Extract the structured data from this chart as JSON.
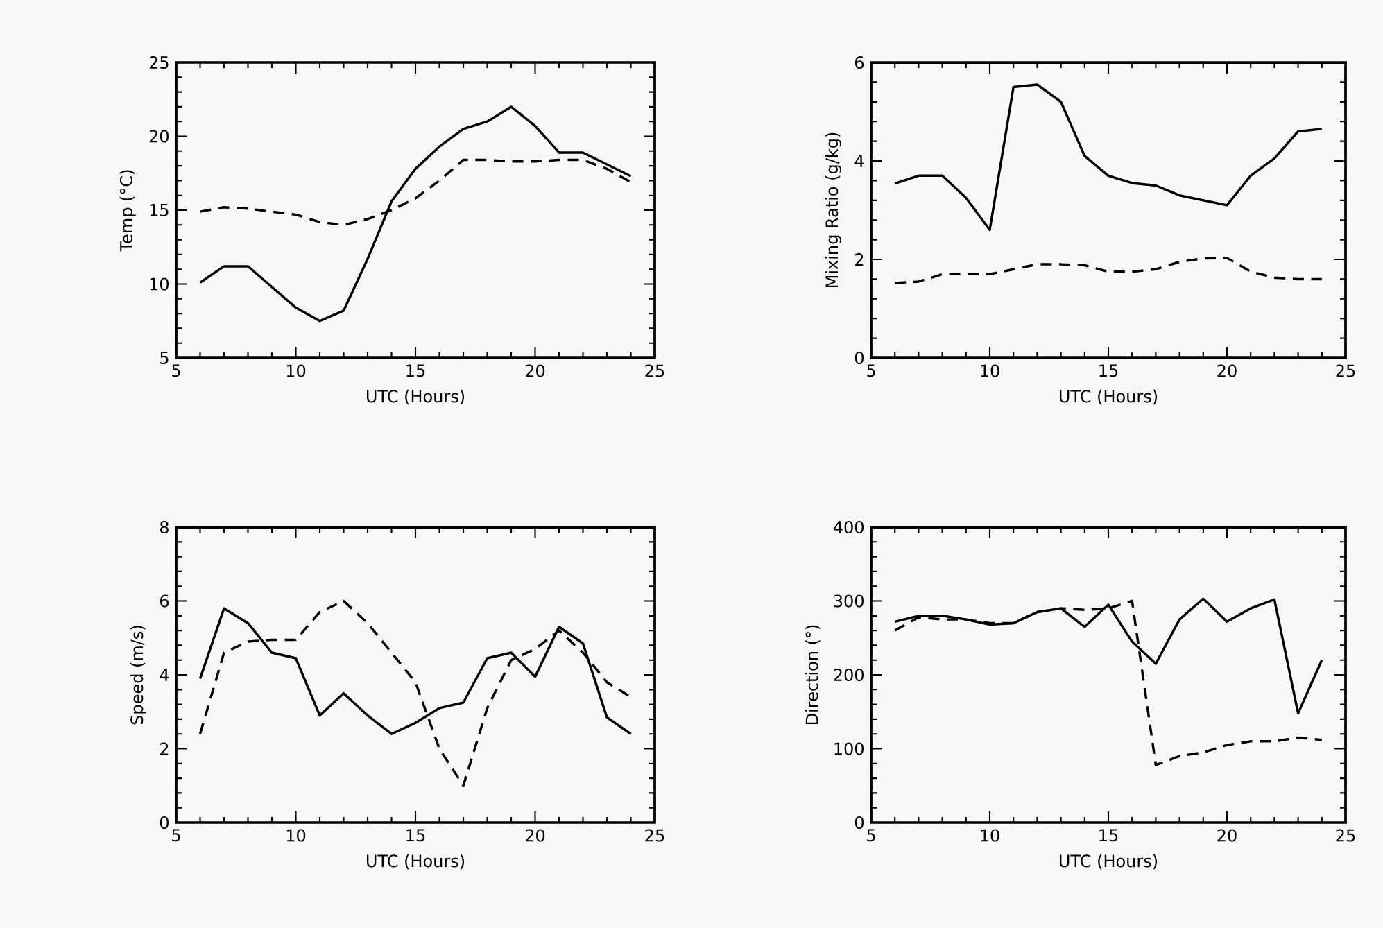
{
  "chart_data": [
    {
      "type": "line",
      "xlabel": "UTC (Hours)",
      "ylabel": "Temp (°C)",
      "x": [
        6,
        7,
        8,
        9,
        10,
        11,
        12,
        13,
        14,
        15,
        16,
        17,
        18,
        19,
        20,
        21,
        22,
        23,
        24
      ],
      "xlim": [
        5,
        25
      ],
      "xticks": [
        5,
        10,
        15,
        20,
        25
      ],
      "ylim": [
        5,
        25
      ],
      "yticks": [
        5,
        10,
        15,
        20,
        25
      ],
      "series": [
        {
          "color": "#000000",
          "line_style": "solid",
          "values": [
            10.1,
            11.2,
            11.2,
            9.8,
            8.4,
            7.5,
            8.2,
            11.7,
            15.6,
            17.8,
            19.3,
            20.5,
            21,
            22,
            20.7,
            18.9,
            18.9,
            18.1,
            17.3
          ]
        },
        {
          "color": "#000000",
          "line_style": "dashed",
          "values": [
            14.9,
            15.2,
            15.1,
            14.9,
            14.7,
            14.2,
            14,
            14.4,
            15,
            15.8,
            17,
            18.4,
            18.4,
            18.3,
            18.3,
            18.4,
            18.4,
            17.8,
            16.9
          ]
        }
      ]
    },
    {
      "type": "line",
      "xlabel": "UTC (Hours)",
      "ylabel": "Mixing Ratio (g/kg)",
      "x": [
        6,
        7,
        8,
        9,
        10,
        11,
        12,
        13,
        14,
        15,
        16,
        17,
        18,
        19,
        20,
        21,
        22,
        23,
        24
      ],
      "xlim": [
        5,
        25
      ],
      "xticks": [
        5,
        10,
        15,
        20,
        25
      ],
      "ylim": [
        0,
        6
      ],
      "yticks": [
        0,
        2,
        4,
        6
      ],
      "series": [
        {
          "color": "#000000",
          "line_style": "solid",
          "values": [
            3.54,
            3.7,
            3.7,
            3.25,
            2.6,
            5.5,
            5.55,
            5.2,
            4.1,
            3.7,
            3.55,
            3.5,
            3.3,
            3.2,
            3.1,
            3.7,
            4.05,
            4.6,
            4.65
          ]
        },
        {
          "color": "#000000",
          "line_style": "dashed",
          "values": [
            1.52,
            1.55,
            1.7,
            1.7,
            1.7,
            1.8,
            1.9,
            1.9,
            1.88,
            1.75,
            1.75,
            1.8,
            1.95,
            2.02,
            2.03,
            1.75,
            1.63,
            1.6,
            1.6
          ]
        }
      ]
    },
    {
      "type": "line",
      "xlabel": "UTC (Hours)",
      "ylabel": "Speed (m/s)",
      "x": [
        6,
        7,
        8,
        9,
        10,
        11,
        12,
        13,
        14,
        15,
        16,
        17,
        18,
        19,
        20,
        21,
        22,
        23,
        24
      ],
      "xlim": [
        5,
        25
      ],
      "xticks": [
        5,
        10,
        15,
        20,
        25
      ],
      "ylim": [
        0,
        8
      ],
      "yticks": [
        0,
        2,
        4,
        6,
        8
      ],
      "series": [
        {
          "color": "#000000",
          "line_style": "solid",
          "values": [
            3.9,
            5.8,
            5.4,
            4.6,
            4.45,
            2.9,
            3.5,
            2.9,
            2.4,
            2.7,
            3.1,
            3.25,
            4.45,
            4.6,
            3.95,
            5.3,
            4.85,
            2.85,
            2.4
          ]
        },
        {
          "color": "#000000",
          "line_style": "dashed",
          "values": [
            2.4,
            4.6,
            4.9,
            4.95,
            4.95,
            5.7,
            6.0,
            5.4,
            4.6,
            3.8,
            2.0,
            1.0,
            3.1,
            4.4,
            4.7,
            5.2,
            4.6,
            3.8,
            3.4
          ]
        }
      ]
    },
    {
      "type": "line",
      "xlabel": "UTC (Hours)",
      "ylabel": "Direction (°)",
      "x": [
        6,
        7,
        8,
        9,
        10,
        11,
        12,
        13,
        14,
        15,
        16,
        17,
        18,
        19,
        20,
        21,
        22,
        23,
        24
      ],
      "xlim": [
        5,
        25
      ],
      "xticks": [
        5,
        10,
        15,
        20,
        25
      ],
      "ylim": [
        0,
        400
      ],
      "yticks": [
        0,
        100,
        200,
        300,
        400
      ],
      "series": [
        {
          "color": "#000000",
          "line_style": "solid",
          "values": [
            272,
            280,
            280,
            275,
            268,
            270,
            285,
            290,
            265,
            295,
            245,
            215,
            275,
            303,
            272,
            290,
            302,
            148,
            220
          ]
        },
        {
          "color": "#000000",
          "line_style": "dashed",
          "values": [
            260,
            278,
            275,
            275,
            270,
            270,
            285,
            290,
            288,
            290,
            300,
            78,
            90,
            95,
            105,
            110,
            110,
            115,
            112
          ]
        }
      ]
    }
  ]
}
